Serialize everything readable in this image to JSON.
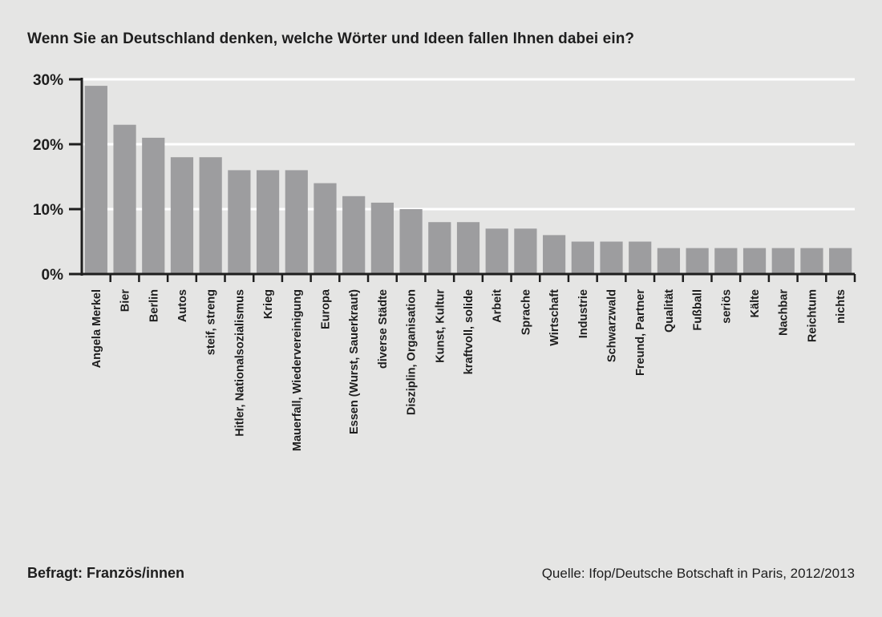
{
  "chart_data": {
    "type": "bar",
    "title": "Wenn Sie an Deutschland denken, welche Wörter und Ideen fallen Ihnen dabei ein?",
    "categories": [
      "Angela Merkel",
      "Bier",
      "Berlin",
      "Autos",
      "steif, streng",
      "Hitler, Nationalsozialismus",
      "Krieg",
      "Mauerfall, Wiedervereinigung",
      "Europa",
      "Essen (Wurst, Sauerkraut)",
      "diverse Städte",
      "Disziplin, Organisation",
      "Kunst, Kultur",
      "kraftvoll, solide",
      "Arbeit",
      "Sprache",
      "Wirtschaft",
      "Industrie",
      "Schwarzwald",
      "Freund, Partner",
      "Qualität",
      "Fußball",
      "seriös",
      "Kälte",
      "Nachbar",
      "Reichtum",
      "nichts"
    ],
    "values": [
      29,
      23,
      21,
      18,
      18,
      16,
      16,
      16,
      14,
      12,
      11,
      10,
      8,
      8,
      7,
      7,
      6,
      5,
      5,
      5,
      4,
      4,
      4,
      4,
      4,
      4,
      4
    ],
    "ylim": [
      0,
      30
    ],
    "yticks": [
      0,
      10,
      20,
      30
    ],
    "ytick_labels": [
      "0%",
      "10%",
      "20%",
      "30%"
    ],
    "grid": true,
    "colors": {
      "bar": "#9d9d9f",
      "grid": "#ffffff",
      "axis": "#1e1e1e",
      "background": "#e5e5e4"
    }
  },
  "footer": {
    "respondents": "Befragt: Französ/innen",
    "source": "Quelle: Ifop/Deutsche Botschaft in Paris, 2012/2013"
  }
}
